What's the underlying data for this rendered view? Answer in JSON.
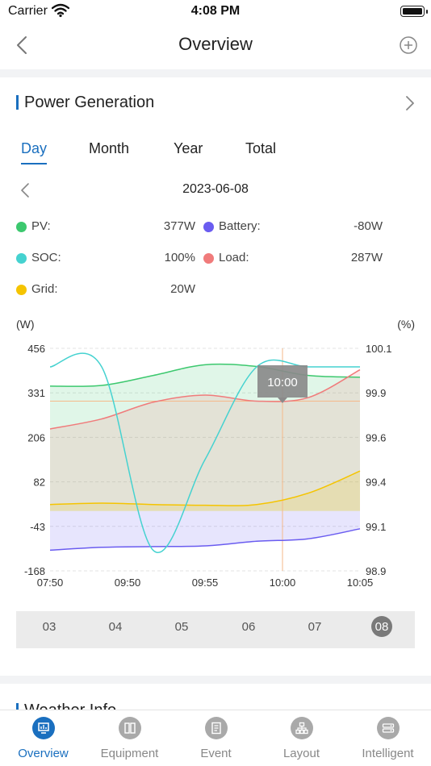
{
  "status_bar": {
    "carrier": "Carrier",
    "time": "4:08 PM"
  },
  "nav": {
    "title": "Overview"
  },
  "power_generation": {
    "title": "Power Generation",
    "tabs": [
      {
        "label": "Day",
        "active": true
      },
      {
        "label": "Month",
        "active": false
      },
      {
        "label": "Year",
        "active": false
      },
      {
        "label": "Total",
        "active": false
      }
    ],
    "date": "2023-06-08",
    "legend": [
      {
        "label": "PV:",
        "value": "377W",
        "color": "#3cc86e"
      },
      {
        "label": "Battery:",
        "value": "-80W",
        "color": "#6a5cf0"
      },
      {
        "label": "SOC:",
        "value": "100%",
        "color": "#45d2d0"
      },
      {
        "label": "Load:",
        "value": "287W",
        "color": "#f07b7b"
      },
      {
        "label": "Grid:",
        "value": "20W",
        "color": "#f5c400"
      }
    ],
    "days": [
      {
        "label": "03",
        "active": false
      },
      {
        "label": "04",
        "active": false
      },
      {
        "label": "05",
        "active": false
      },
      {
        "label": "06",
        "active": false
      },
      {
        "label": "07",
        "active": false
      },
      {
        "label": "08",
        "active": true
      }
    ]
  },
  "chart_data": {
    "type": "area",
    "ylabel_left": "(W)",
    "ylabel_right": "(%)",
    "y_left_ticks": [
      "456",
      "331",
      "206",
      "82",
      "-43",
      "-168"
    ],
    "y_right_ticks": [
      "100.1",
      "99.9",
      "99.6",
      "99.4",
      "99.1",
      "98.9"
    ],
    "x_ticks": [
      "07:50",
      "09:50",
      "09:55",
      "10:00",
      "10:05"
    ],
    "ylim_left": [
      -168,
      456
    ],
    "ylim_right": [
      98.9,
      100.1
    ],
    "tooltip": "10:00",
    "tooltip_x": "10:00",
    "grid": true,
    "series": [
      {
        "name": "PV",
        "color": "#3cc86e",
        "axis": "left",
        "values": [
          350,
          352,
          380,
          410,
          405,
          380,
          375
        ]
      },
      {
        "name": "Load",
        "color": "#f07b7b",
        "axis": "left",
        "values": [
          230,
          258,
          305,
          325,
          308,
          318,
          396
        ]
      },
      {
        "name": "Grid",
        "color": "#f5c400",
        "axis": "left",
        "values": [
          18,
          22,
          18,
          16,
          18,
          50,
          112
        ]
      },
      {
        "name": "Battery",
        "color": "#6a5cf0",
        "axis": "left",
        "values": [
          -110,
          -102,
          -100,
          -98,
          -85,
          -78,
          -50
        ]
      },
      {
        "name": "SOC",
        "color": "#45d2d0",
        "axis": "right",
        "values": [
          100.0,
          100.0,
          99.01,
          99.5,
          100.0,
          100.0,
          100.0
        ]
      }
    ]
  },
  "weather": {
    "title": "Weather Info"
  },
  "tabbar": [
    {
      "label": "Overview",
      "icon": "overview-icon",
      "active": true
    },
    {
      "label": "Equipment",
      "icon": "equipment-icon",
      "active": false
    },
    {
      "label": "Event",
      "icon": "event-icon",
      "active": false
    },
    {
      "label": "Layout",
      "icon": "layout-icon",
      "active": false
    },
    {
      "label": "Intelligent",
      "icon": "intelligent-icon",
      "active": false
    }
  ]
}
